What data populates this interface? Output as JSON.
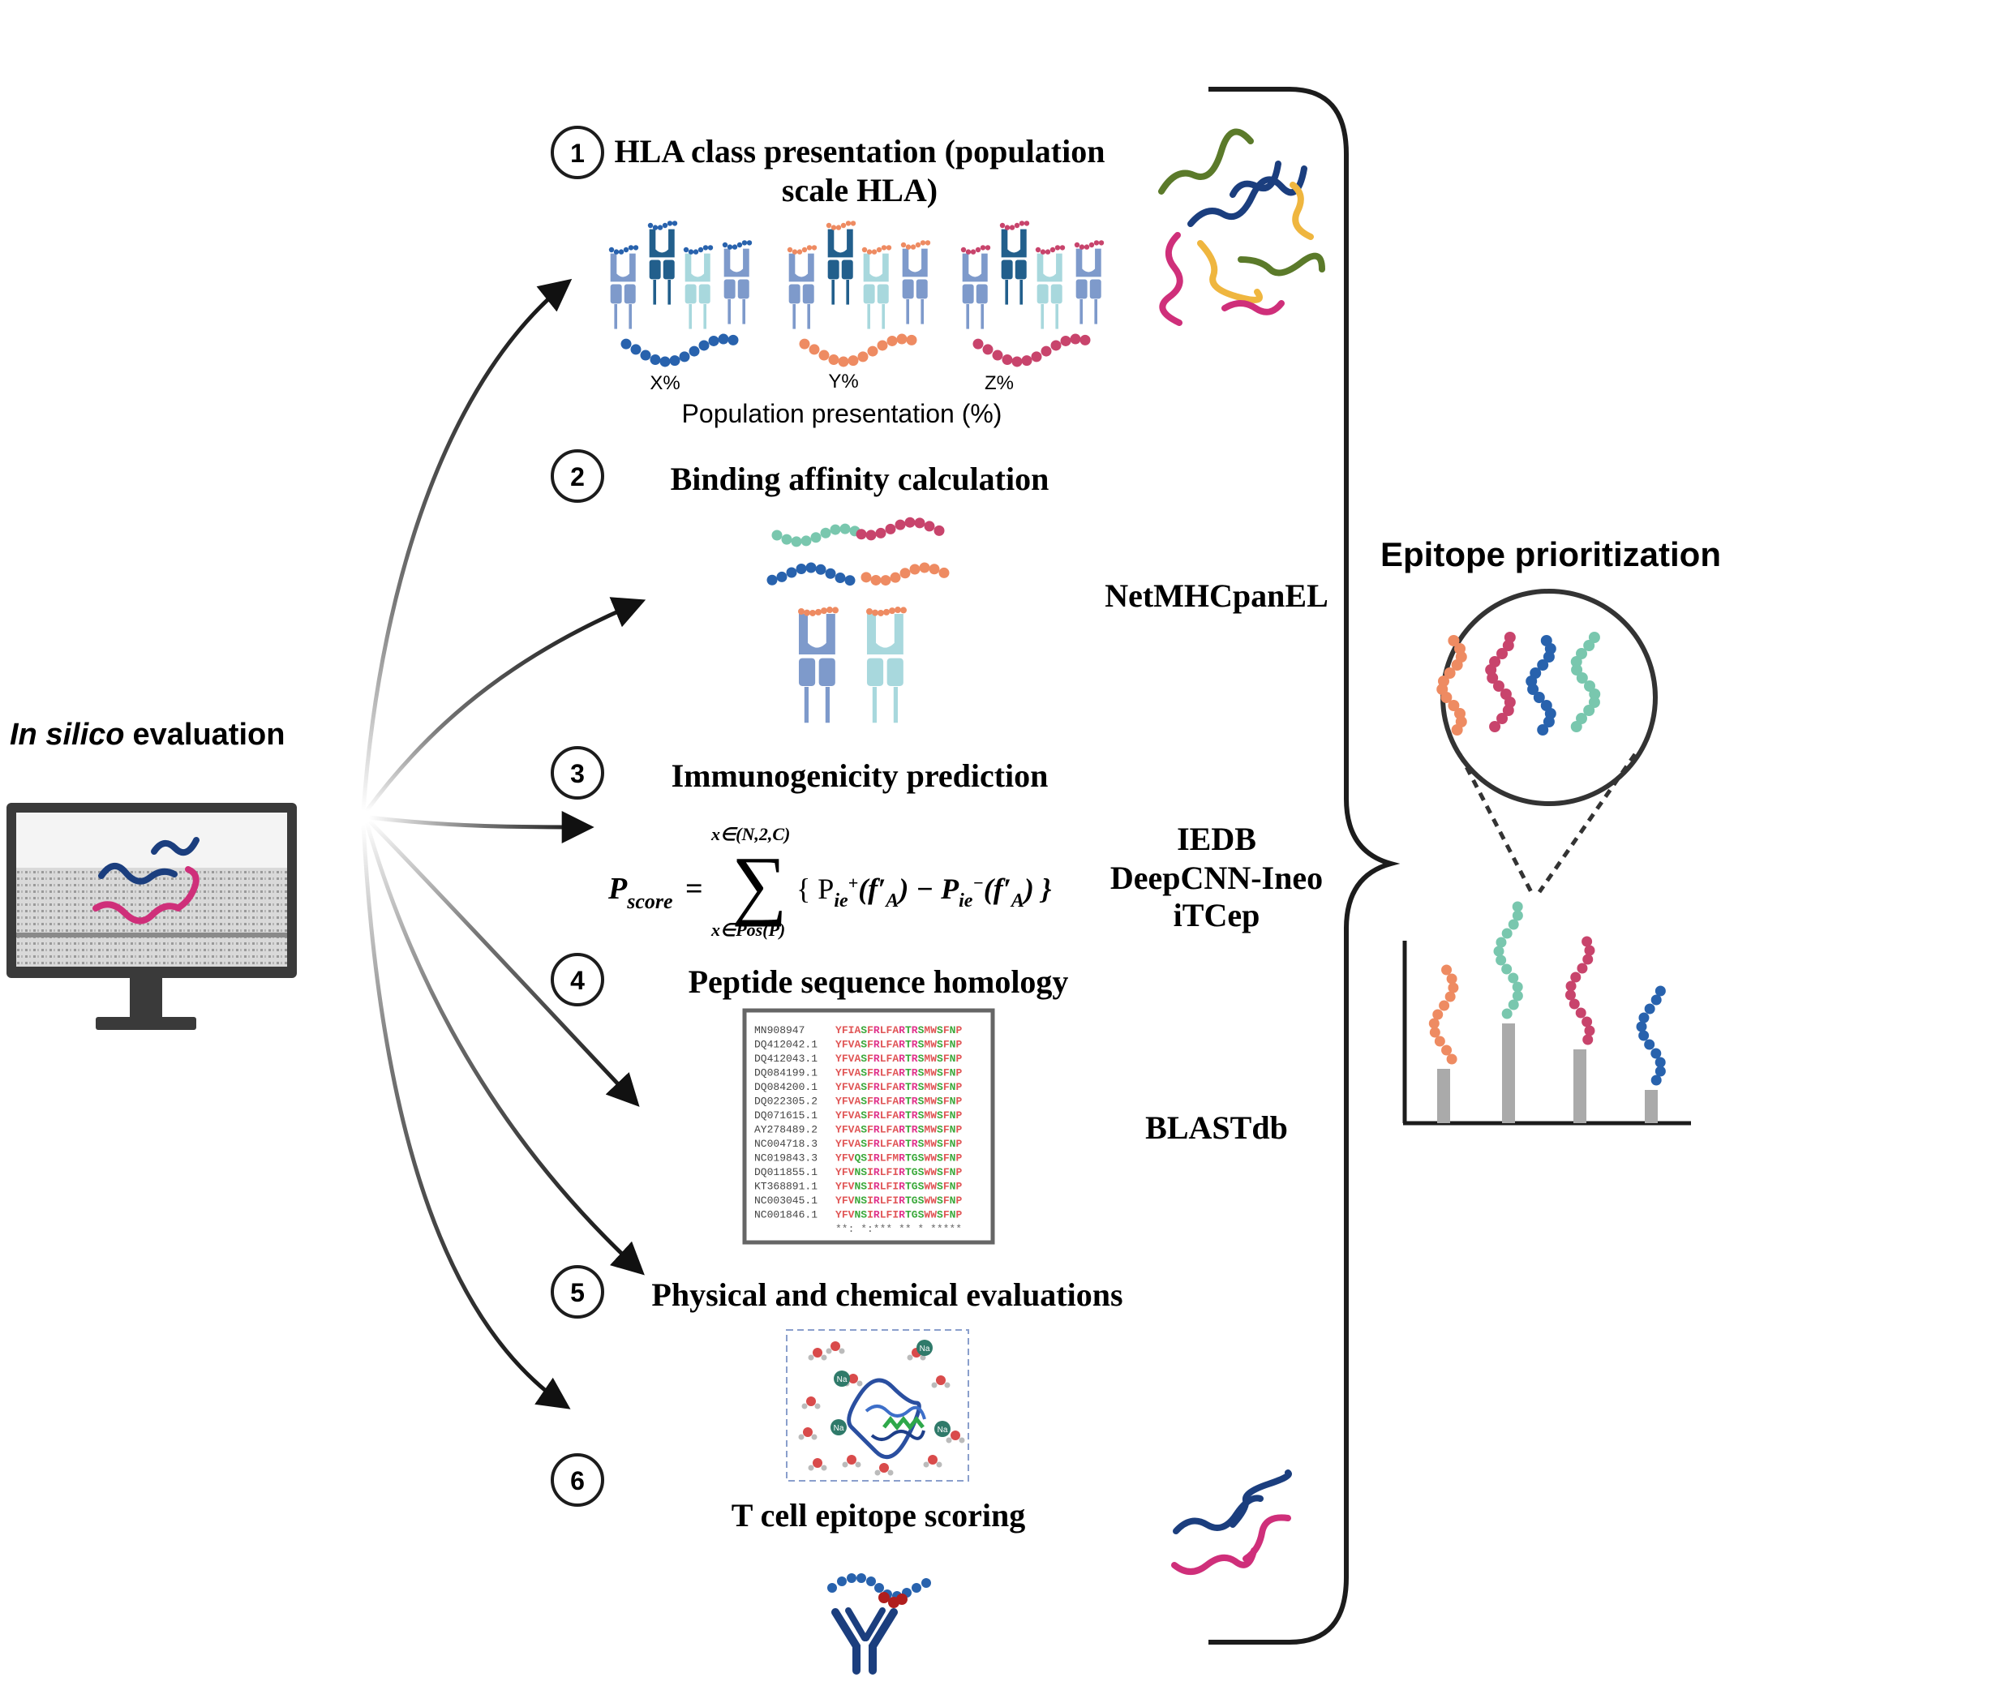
{
  "left_panel": {
    "title_italic": "In silico",
    "title_rest": "evaluation"
  },
  "steps": [
    {
      "number": "1",
      "title_line1": "HLA class presentation (population",
      "title_line2": "scale HLA)"
    },
    {
      "number": "2",
      "title_line1": "Binding affinity calculation",
      "title_line2": ""
    },
    {
      "number": "3",
      "title_line1": "Immunogenicity prediction",
      "title_line2": ""
    },
    {
      "number": "4",
      "title_line1": "Peptide sequence homology",
      "title_line2": ""
    },
    {
      "number": "5",
      "title_line1": "Physical and chemical evaluations",
      "title_line2": ""
    },
    {
      "number": "6",
      "title_line1": "T cell epitope scoring",
      "title_line2": ""
    }
  ],
  "population": {
    "labels": [
      "X%",
      "Y%",
      "Z%"
    ],
    "caption": "Population presentation (%)"
  },
  "formula": {
    "lhs": "P",
    "lhs_sub": "score",
    "sum_upper": "x∈(N,2,C)",
    "sum_lower": "x∈Pos(P)",
    "body": "{ P",
    "t1_sub": "ie",
    "t1_sup": "+",
    "t1_arg": "(f′",
    "t1_arg_sub": "A",
    "minus": ") − P",
    "t2_sub": "ie",
    "t2_sup": "−",
    "t2_arg": "(f′",
    "t2_arg_sub": "A",
    "close": ") }"
  },
  "alignment": {
    "rows": [
      {
        "id": "MN908947",
        "seq": "YFIASFRLFARTRSMWSFNP"
      },
      {
        "id": "DQ412042.1",
        "seq": "YFVASFRLFARTRSMWSFNP"
      },
      {
        "id": "DQ412043.1",
        "seq": "YFVASFRLFARTRSMWSFNP"
      },
      {
        "id": "DQ084199.1",
        "seq": "YFVASFRLFARTRSMWSFNP"
      },
      {
        "id": "DQ084200.1",
        "seq": "YFVASFRLFARTRSMWSFNP"
      },
      {
        "id": "DQ022305.2",
        "seq": "YFVASFRLFARTRSMWSFNP"
      },
      {
        "id": "DQ071615.1",
        "seq": "YFVASFRLFARTRSMWSFNP"
      },
      {
        "id": "AY278489.2",
        "seq": "YFVASFRLFARTRSMWSFNP"
      },
      {
        "id": "NC004718.3",
        "seq": "YFVASFRLFARTRSMWSFNP"
      },
      {
        "id": "NC019843.3",
        "seq": "YFVQSIRLFMRTGSWWSFNP"
      },
      {
        "id": "DQ011855.1",
        "seq": "YFVNSIRLFIRTGSWWSFNP"
      },
      {
        "id": "KT368891.1",
        "seq": "YFVNSIRLFIRTGSWWSFNP"
      },
      {
        "id": "NC003045.1",
        "seq": "YFVNSIRLFIRTGSWWSFNP"
      },
      {
        "id": "NC001846.1",
        "seq": "YFVNSIRLFIRTGSWWSFNP"
      }
    ],
    "consensus": "**: *:*** ** * *****"
  },
  "ion_label": "Na",
  "tools": {
    "t1": "NetMHCpanEL",
    "t2a": "IEDB",
    "t2b": "DeepCNN-Ineo",
    "t2c": "iTCep",
    "t3": "BLASTdb"
  },
  "right_panel": {
    "title": "Epitope prioritization"
  },
  "colors": {
    "orange": "#EE8B62",
    "teal": "#79C7AE",
    "pink": "#C8446C",
    "blue": "#2862AD",
    "navy": "#1B3E7E",
    "magenta": "#CF2F7A",
    "olive": "#5B7A2A",
    "yellow": "#EFB63F",
    "hla_blue": "#7E9ACB",
    "hla_dark": "#225F8C",
    "hla_light": "#A8D8DD",
    "bar_gray": "#AAAAAA"
  }
}
